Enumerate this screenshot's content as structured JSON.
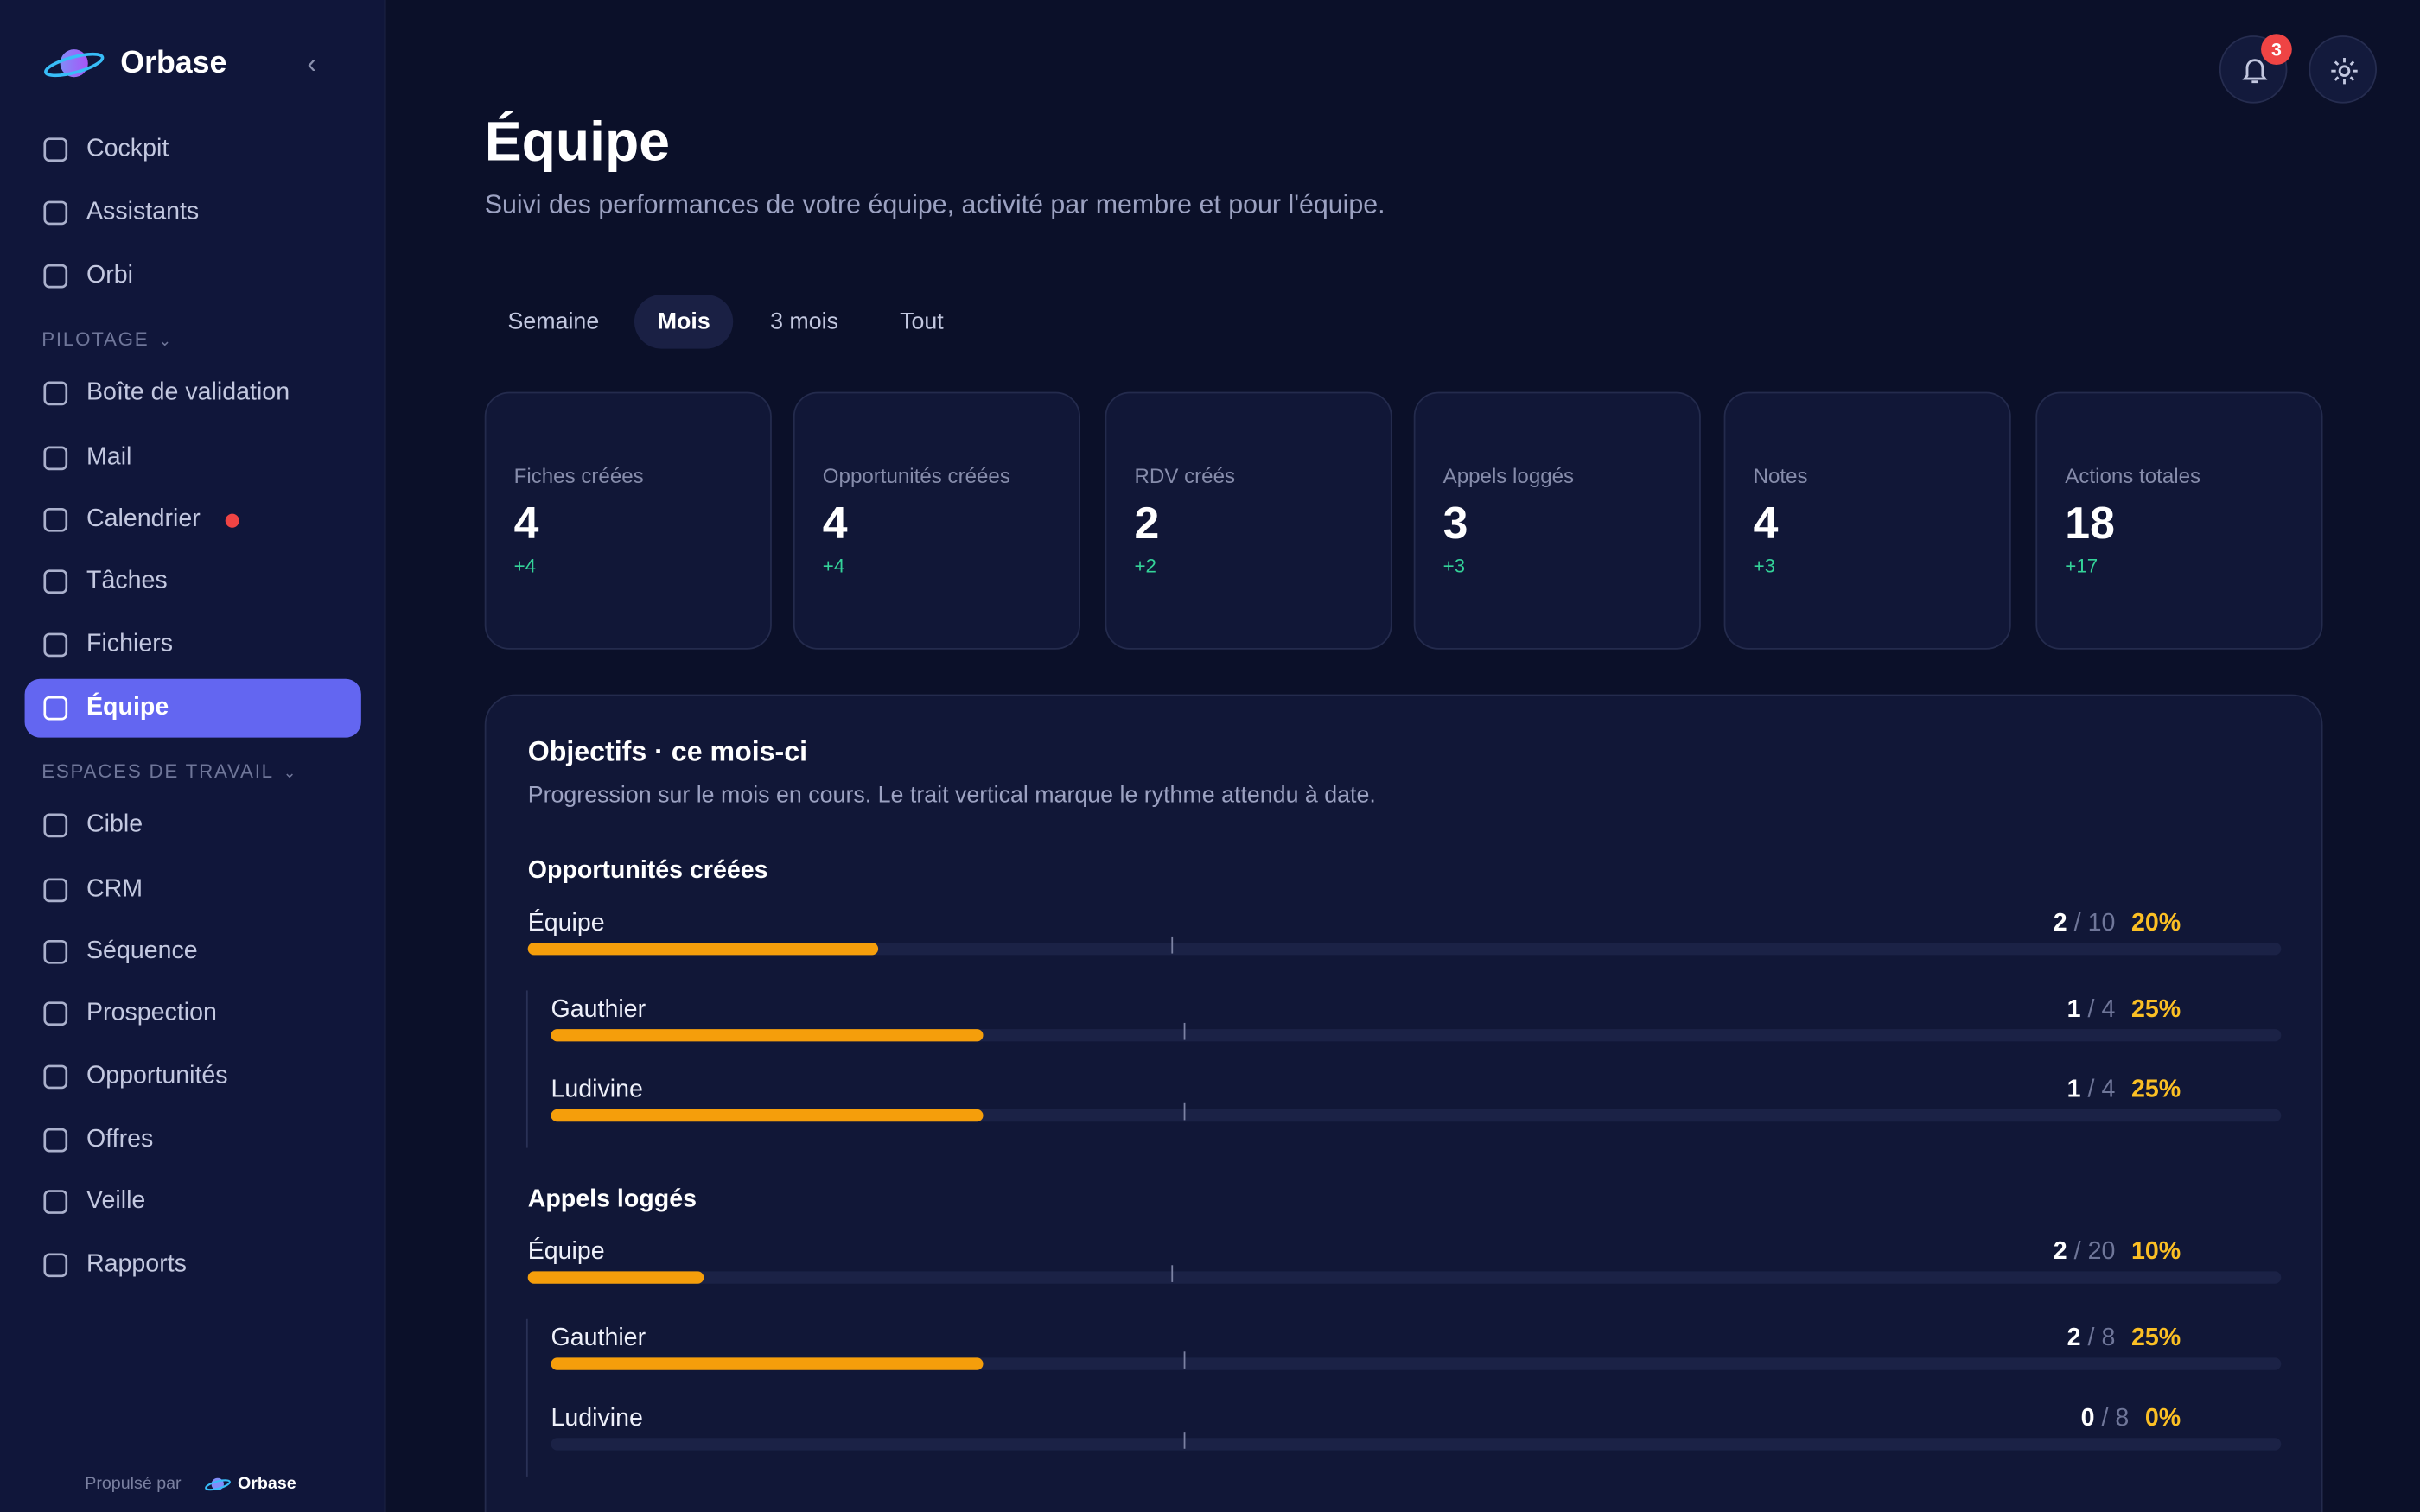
{
  "sidebar": {
    "brand": "Orbase",
    "items": [
      {
        "label": "Cockpit"
      },
      {
        "label": "Assistants"
      },
      {
        "label": "Orbi"
      },
      {
        "section": "PILOTAGE"
      },
      {
        "label": "Boîte de validation"
      },
      {
        "label": "Mail"
      },
      {
        "label": "Calendrier",
        "alert": true
      },
      {
        "label": "Tâches"
      },
      {
        "label": "Fichiers"
      },
      {
        "label": "Équipe",
        "active": true
      },
      {
        "section": "ESPACES DE TRAVAIL"
      },
      {
        "label": "Cible"
      },
      {
        "label": "CRM"
      },
      {
        "label": "Séquence"
      },
      {
        "label": "Prospection"
      },
      {
        "label": "Opportunités"
      },
      {
        "label": "Offres"
      },
      {
        "label": "Veille"
      },
      {
        "label": "Rapports"
      }
    ],
    "footer": {
      "powered_by": "Propulsé par",
      "brand": "Orbase"
    }
  },
  "notifications": 3,
  "header": {
    "title": "Équipe",
    "subtitle": "Suivi des performances de votre équipe, activité par membre et pour l'équipe."
  },
  "tabs": [
    {
      "label": "Semaine"
    },
    {
      "label": "Mois",
      "active": true
    },
    {
      "label": "3 mois"
    },
    {
      "label": "Tout"
    }
  ],
  "stats": [
    {
      "label": "Fiches créées",
      "value": 4,
      "delta": "+4"
    },
    {
      "label": "Opportunités créées",
      "value": 4,
      "delta": "+4"
    },
    {
      "label": "RDV créés",
      "value": 2,
      "delta": "+2"
    },
    {
      "label": "Appels loggés",
      "value": 3,
      "delta": "+3"
    },
    {
      "label": "Notes",
      "value": 4,
      "delta": "+3"
    },
    {
      "label": "Actions totales",
      "value": 18,
      "delta": "+17"
    }
  ],
  "objectives": {
    "title": "Objectifs · ce mois-ci",
    "description": "Progression sur le mois en cours. Le trait vertical marque le rythme attendu à date.",
    "groups": [
      {
        "title": "Opportunités créées",
        "team": {
          "name": "Équipe",
          "value": 2,
          "target": 10,
          "separator": "/",
          "percent": "20%"
        },
        "members": [
          {
            "name": "Gauthier",
            "value": 1,
            "target": 4,
            "separator": "/",
            "percent": "25%"
          },
          {
            "name": "Ludivine",
            "value": 1,
            "target": 4,
            "separator": "/",
            "percent": "25%"
          }
        ]
      },
      {
        "title": "Appels loggés",
        "team": {
          "name": "Équipe",
          "value": 2,
          "target": 20,
          "separator": "/",
          "percent": "10%"
        },
        "members": [
          {
            "name": "Gauthier",
            "value": 2,
            "target": 8,
            "separator": "/",
            "percent": "25%"
          },
          {
            "name": "Ludivine",
            "value": 0,
            "target": 8,
            "separator": "/",
            "percent": "0%"
          }
        ]
      }
    ]
  }
}
